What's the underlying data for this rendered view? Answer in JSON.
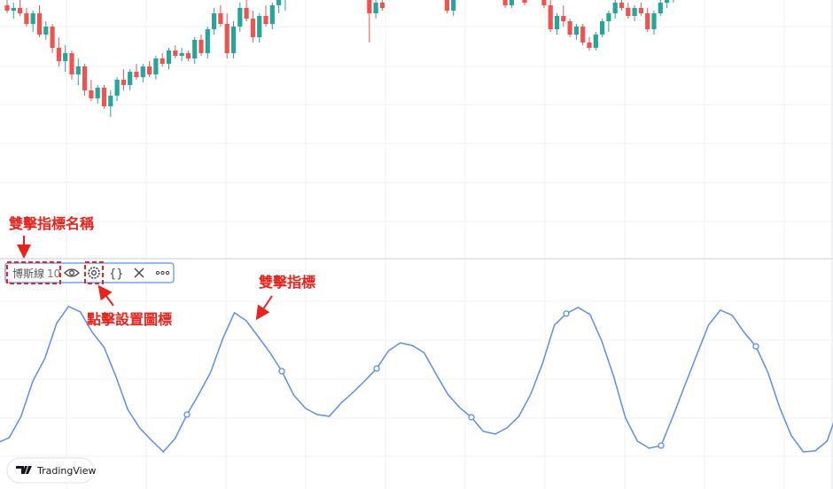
{
  "annotations": {
    "name_hint": "雙擊指標名稱",
    "settings_hint": "點擊設置圖標",
    "indicator_hint": "雙擊指標"
  },
  "toolbar": {
    "indicator_name": "博斯線",
    "indicator_param": "10",
    "source_code": "{}"
  },
  "watermark": "TradingView",
  "chart_data": [
    {
      "type": "candlestick",
      "up_color": "#26a69a",
      "down_color": "#ef5350",
      "ylim": [
        0,
        100
      ],
      "x": [
        0,
        1,
        2,
        3,
        4,
        5,
        6,
        7,
        8,
        9,
        10,
        11,
        12,
        13,
        14,
        15,
        16,
        17,
        18,
        19,
        20,
        21,
        22,
        23,
        24,
        25,
        26,
        27,
        28,
        29,
        30,
        31,
        32,
        33,
        34,
        35,
        36,
        37,
        38,
        39,
        40,
        41,
        42,
        43,
        56,
        57,
        58,
        68,
        69,
        77,
        78,
        80,
        83,
        84,
        85,
        86,
        87,
        88,
        89,
        90,
        91,
        92,
        93,
        94,
        95,
        96,
        97,
        98,
        99,
        100,
        101,
        102,
        103,
        104
      ],
      "open": [
        98,
        96,
        97,
        95,
        91,
        95,
        87,
        90,
        82,
        77,
        80,
        72,
        75,
        66,
        63,
        67,
        60,
        64,
        70,
        68,
        73,
        71,
        75,
        72,
        78,
        76,
        81,
        79,
        80,
        78,
        85,
        80,
        89,
        95,
        91,
        80,
        90,
        97,
        93,
        86,
        94,
        91,
        98,
        100,
        100,
        95,
        99,
        100,
        96,
        101,
        98,
        101,
        101,
        98,
        89,
        94,
        92,
        87,
        90,
        84,
        82,
        87,
        92,
        95,
        99,
        97,
        94,
        97,
        95,
        89,
        95,
        99,
        101,
        103
      ],
      "high": [
        102,
        99,
        101,
        97,
        96,
        98,
        92,
        91,
        86,
        83,
        81,
        78,
        76,
        70,
        68,
        68,
        66,
        71,
        74,
        74,
        76,
        76,
        77,
        79,
        80,
        82,
        83,
        82,
        81,
        86,
        87,
        90,
        97,
        98,
        95,
        92,
        99,
        101,
        96,
        95,
        98,
        99,
        102,
        104,
        102,
        100,
        102,
        103,
        101,
        103,
        102,
        104,
        103,
        100,
        95,
        98,
        93,
        91,
        91,
        86,
        88,
        93,
        96,
        100,
        101,
        99,
        98,
        99,
        97,
        96,
        100,
        102,
        104,
        105
      ],
      "low": [
        95,
        93,
        94,
        90,
        88,
        86,
        85,
        80,
        75,
        73,
        70,
        68,
        64,
        62,
        61,
        59,
        56,
        62,
        66,
        66,
        70,
        69,
        71,
        70,
        75,
        74,
        78,
        77,
        77,
        76,
        79,
        78,
        87,
        90,
        78,
        78,
        88,
        92,
        84,
        84,
        90,
        89,
        95,
        96,
        84,
        93,
        96,
        95,
        94,
        97,
        97,
        98,
        97,
        88,
        87,
        90,
        86,
        85,
        83,
        81,
        81,
        86,
        88,
        93,
        96,
        93,
        92,
        94,
        88,
        87,
        94,
        97,
        99,
        101
      ],
      "close": [
        96,
        97,
        95,
        91,
        95,
        87,
        90,
        82,
        77,
        80,
        72,
        75,
        66,
        63,
        67,
        60,
        64,
        70,
        68,
        73,
        71,
        75,
        72,
        78,
        76,
        81,
        79,
        80,
        78,
        85,
        80,
        89,
        95,
        91,
        80,
        90,
        97,
        93,
        86,
        94,
        91,
        98,
        100,
        103,
        95,
        99,
        97,
        96,
        100,
        98,
        101,
        99,
        98,
        89,
        94,
        92,
        87,
        90,
        84,
        82,
        87,
        92,
        95,
        99,
        97,
        94,
        97,
        95,
        89,
        95,
        99,
        101,
        103,
        104
      ]
    },
    {
      "type": "line",
      "name": "博斯線 10",
      "color": "#5b8def",
      "ylim": [
        0,
        110
      ],
      "values": [
        20,
        23,
        35,
        55,
        67.5,
        87.5,
        97,
        94,
        82.5,
        74,
        57.5,
        39,
        28.5,
        21.5,
        15,
        22.5,
        36,
        47.5,
        60,
        78.5,
        93.5,
        89,
        80,
        71,
        60.5,
        47,
        39.5,
        36,
        35,
        42.5,
        48.5,
        55,
        62,
        72,
        76.5,
        75,
        71,
        59,
        47.5,
        40,
        34.5,
        26.5,
        25,
        28.5,
        35,
        47.5,
        65,
        86.5,
        93,
        96.5,
        92.5,
        77.5,
        57.5,
        34,
        21,
        17,
        18.5,
        35,
        52.5,
        69.5,
        86.5,
        95,
        92,
        82.5,
        74.5,
        60,
        40,
        24,
        15,
        15.5,
        21,
        40
      ]
    }
  ]
}
